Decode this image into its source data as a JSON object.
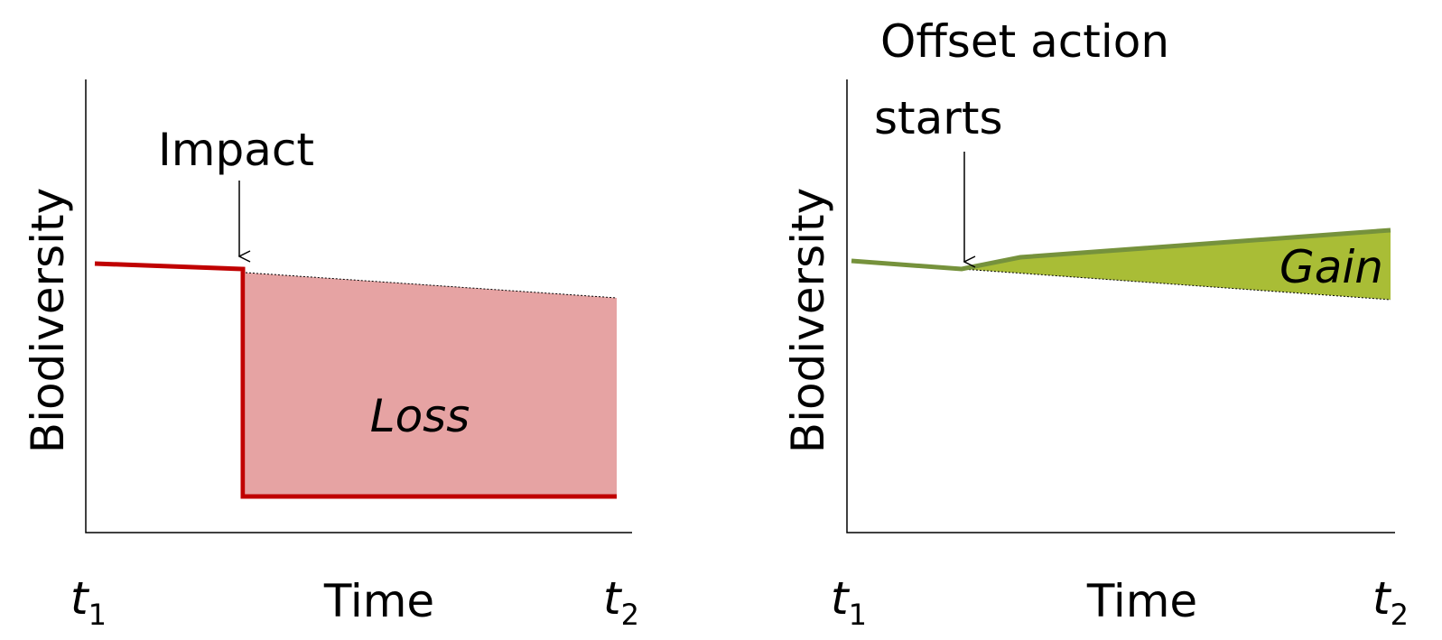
{
  "panels": [
    {
      "annotation": [
        "Impact"
      ],
      "area_label": "Loss",
      "y_label": "Biodiversity",
      "x_label": "Time",
      "x_start": {
        "main": "t",
        "sub": "1"
      },
      "x_end": {
        "main": "t",
        "sub": "2"
      }
    },
    {
      "annotation": [
        "Offset action",
        "starts"
      ],
      "area_label": "Gain",
      "y_label": "Biodiversity",
      "x_label": "Time",
      "x_start": {
        "main": "t",
        "sub": "1"
      },
      "x_end": {
        "main": "t",
        "sub": "2"
      }
    }
  ]
}
